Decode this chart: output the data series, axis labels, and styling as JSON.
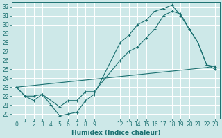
{
  "xlabel": "Humidex (Indice chaleur)",
  "background_color": "#cde8e8",
  "line_color": "#1a7070",
  "grid_color": "#b8d8d8",
  "xlim": [
    -0.5,
    23.5
  ],
  "ylim": [
    19.5,
    32.5
  ],
  "yticks": [
    20,
    21,
    22,
    23,
    24,
    25,
    26,
    27,
    28,
    29,
    30,
    31,
    32
  ],
  "line1_x": [
    0,
    1,
    2,
    3,
    4,
    5,
    6,
    7,
    8,
    9,
    12,
    13,
    14,
    15,
    16,
    17,
    18,
    19,
    20,
    21,
    22,
    23
  ],
  "line1_y": [
    23.0,
    22.0,
    21.5,
    22.2,
    21.0,
    19.8,
    20.0,
    20.2,
    21.5,
    22.2,
    28.0,
    28.8,
    30.0,
    30.5,
    31.5,
    31.8,
    32.2,
    31.0,
    29.5,
    28.0,
    25.5,
    25.3
  ],
  "line2_x": [
    0,
    1,
    2,
    3,
    4,
    5,
    6,
    7,
    8,
    9,
    12,
    13,
    14,
    15,
    16,
    17,
    18,
    19,
    20,
    21,
    22,
    23
  ],
  "line2_y": [
    23.0,
    22.0,
    22.0,
    22.2,
    21.5,
    20.8,
    21.5,
    21.5,
    22.5,
    22.5,
    26.0,
    27.0,
    27.5,
    28.5,
    29.5,
    31.0,
    31.5,
    31.2,
    29.5,
    28.0,
    25.5,
    25.0
  ],
  "line3_x": [
    0,
    1,
    2,
    3,
    4,
    5,
    6,
    7,
    8,
    9,
    10,
    11,
    12,
    13,
    14,
    15,
    16,
    17,
    18,
    19,
    20,
    21,
    22,
    23
  ],
  "line3_y": [
    23.0,
    23.1,
    23.2,
    23.3,
    23.4,
    23.5,
    23.6,
    23.7,
    23.8,
    23.9,
    24.0,
    24.1,
    24.2,
    24.3,
    24.4,
    24.5,
    24.6,
    24.7,
    24.8,
    24.9,
    25.0,
    25.1,
    25.2,
    25.4
  ],
  "figsize": [
    3.2,
    2.0
  ],
  "dpi": 100,
  "tick_fontsize": 5.5,
  "label_fontsize": 6.5
}
